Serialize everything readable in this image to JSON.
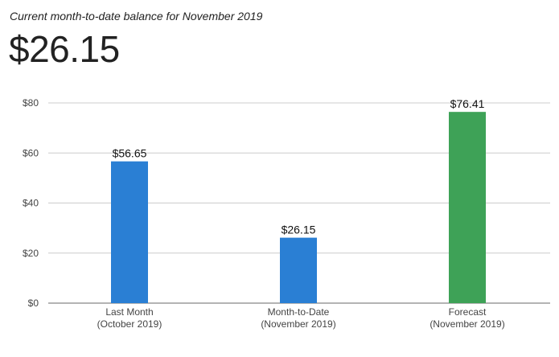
{
  "header": {
    "subtitle": "Current month-to-date balance for November 2019",
    "amount": "$26.15"
  },
  "chart_data": {
    "type": "bar",
    "categories": [
      [
        "Last Month",
        "(October 2019)"
      ],
      [
        "Month-to-Date",
        "(November 2019)"
      ],
      [
        "Forecast",
        "(November 2019)"
      ]
    ],
    "values": [
      56.65,
      26.15,
      76.41
    ],
    "value_labels": [
      "$56.65",
      "$26.15",
      "$76.41"
    ],
    "colors": [
      "#2a7fd4",
      "#2a7fd4",
      "#3ea257"
    ],
    "ylim": [
      0,
      80
    ],
    "yticks": [
      0,
      20,
      40,
      60,
      80
    ],
    "ytick_labels": [
      "$0",
      "$20",
      "$40",
      "$60",
      "$80"
    ],
    "grid": true,
    "gridline_color": "#cccccc",
    "axis_color": "#888888"
  }
}
